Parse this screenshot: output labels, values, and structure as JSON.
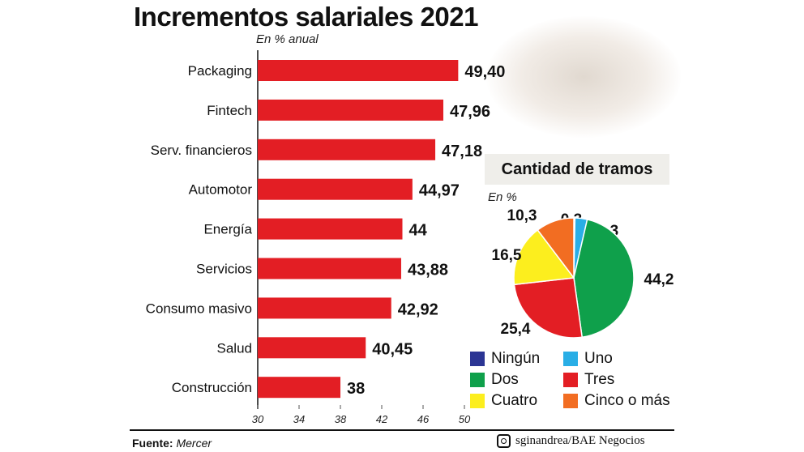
{
  "chart_data": [
    {
      "type": "bar",
      "orientation": "horizontal",
      "title": "Incrementos salariales 2021",
      "subtitle": "En % anual",
      "categories": [
        "Packaging",
        "Fintech",
        "Serv. financieros",
        "Automotor",
        "Energía",
        "Servicios",
        "Consumo masivo",
        "Salud",
        "Construcción"
      ],
      "values": [
        49.4,
        47.96,
        47.18,
        44.97,
        44,
        43.88,
        42.92,
        40.45,
        38
      ],
      "value_labels": [
        "49,40",
        "47,96",
        "47,18",
        "44,97",
        "44",
        "43,88",
        "42,92",
        "40,45",
        "38"
      ],
      "xlim": [
        30,
        50
      ],
      "xticks": [
        "30",
        "34",
        "38",
        "42",
        "46",
        "50"
      ],
      "color": "#e31e24",
      "grid": false
    },
    {
      "type": "pie",
      "title": "Cantidad de tramos",
      "subtitle": "En %",
      "slices": [
        {
          "name": "Ningún",
          "value": 0.3,
          "label": "0,3",
          "color": "#2b3594"
        },
        {
          "name": "Uno",
          "value": 3.3,
          "label": "3,3",
          "color": "#29aee6"
        },
        {
          "name": "Dos",
          "value": 44.2,
          "label": "44,2",
          "color": "#0fa04b"
        },
        {
          "name": "Tres",
          "value": 25.4,
          "label": "25,4",
          "color": "#e31e24"
        },
        {
          "name": "Cuatro",
          "value": 16.5,
          "label": "16,5",
          "color": "#fcee1e"
        },
        {
          "name": "Cinco o más",
          "value": 10.3,
          "label": "10,3",
          "color": "#f26d22"
        }
      ],
      "legend": "bottom"
    }
  ],
  "footer": {
    "source_label": "Fuente:",
    "source": "Mercer",
    "credit": "sginandrea/BAE Negocios",
    "credit_icon": "instagram-icon"
  }
}
